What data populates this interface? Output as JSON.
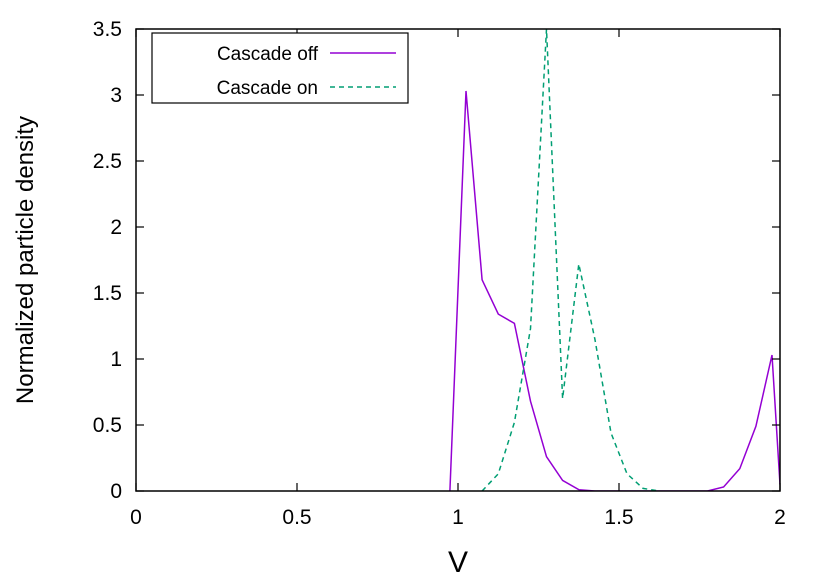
{
  "chart_data": {
    "type": "line",
    "title": "",
    "xlabel": "V",
    "ylabel": "Normalized particle density",
    "xlim": [
      0,
      2
    ],
    "ylim": [
      0,
      3.5
    ],
    "xticks": [
      "0",
      "0.5",
      "1",
      "1.5",
      "2"
    ],
    "yticks": [
      "0",
      "0.5",
      "1",
      "1.5",
      "2",
      "2.5",
      "3",
      "3.5"
    ],
    "grid": false,
    "legend_position": "top-left",
    "series": [
      {
        "name": "Cascade off",
        "color": "#9400d3",
        "dash": "solid",
        "x": [
          0.975,
          1.025,
          1.075,
          1.125,
          1.175,
          1.225,
          1.275,
          1.325,
          1.375,
          1.425,
          1.475,
          1.525,
          1.575,
          1.625,
          1.675,
          1.725,
          1.775,
          1.825,
          1.875,
          1.925,
          1.975,
          2.0
        ],
        "y": [
          0,
          3.03,
          1.6,
          1.34,
          1.27,
          0.68,
          0.26,
          0.08,
          0.01,
          0,
          0,
          0,
          0,
          0,
          0,
          0,
          0,
          0.03,
          0.17,
          0.49,
          1.03,
          0.05
        ]
      },
      {
        "name": "Cascade on",
        "color": "#009e73",
        "dash": "dashed",
        "x": [
          1.075,
          1.125,
          1.175,
          1.225,
          1.275,
          1.325,
          1.375,
          1.425,
          1.475,
          1.525,
          1.575,
          1.625
        ],
        "y": [
          0,
          0.13,
          0.52,
          1.23,
          3.5,
          0.7,
          1.72,
          1.15,
          0.44,
          0.13,
          0.02,
          0
        ]
      }
    ]
  }
}
